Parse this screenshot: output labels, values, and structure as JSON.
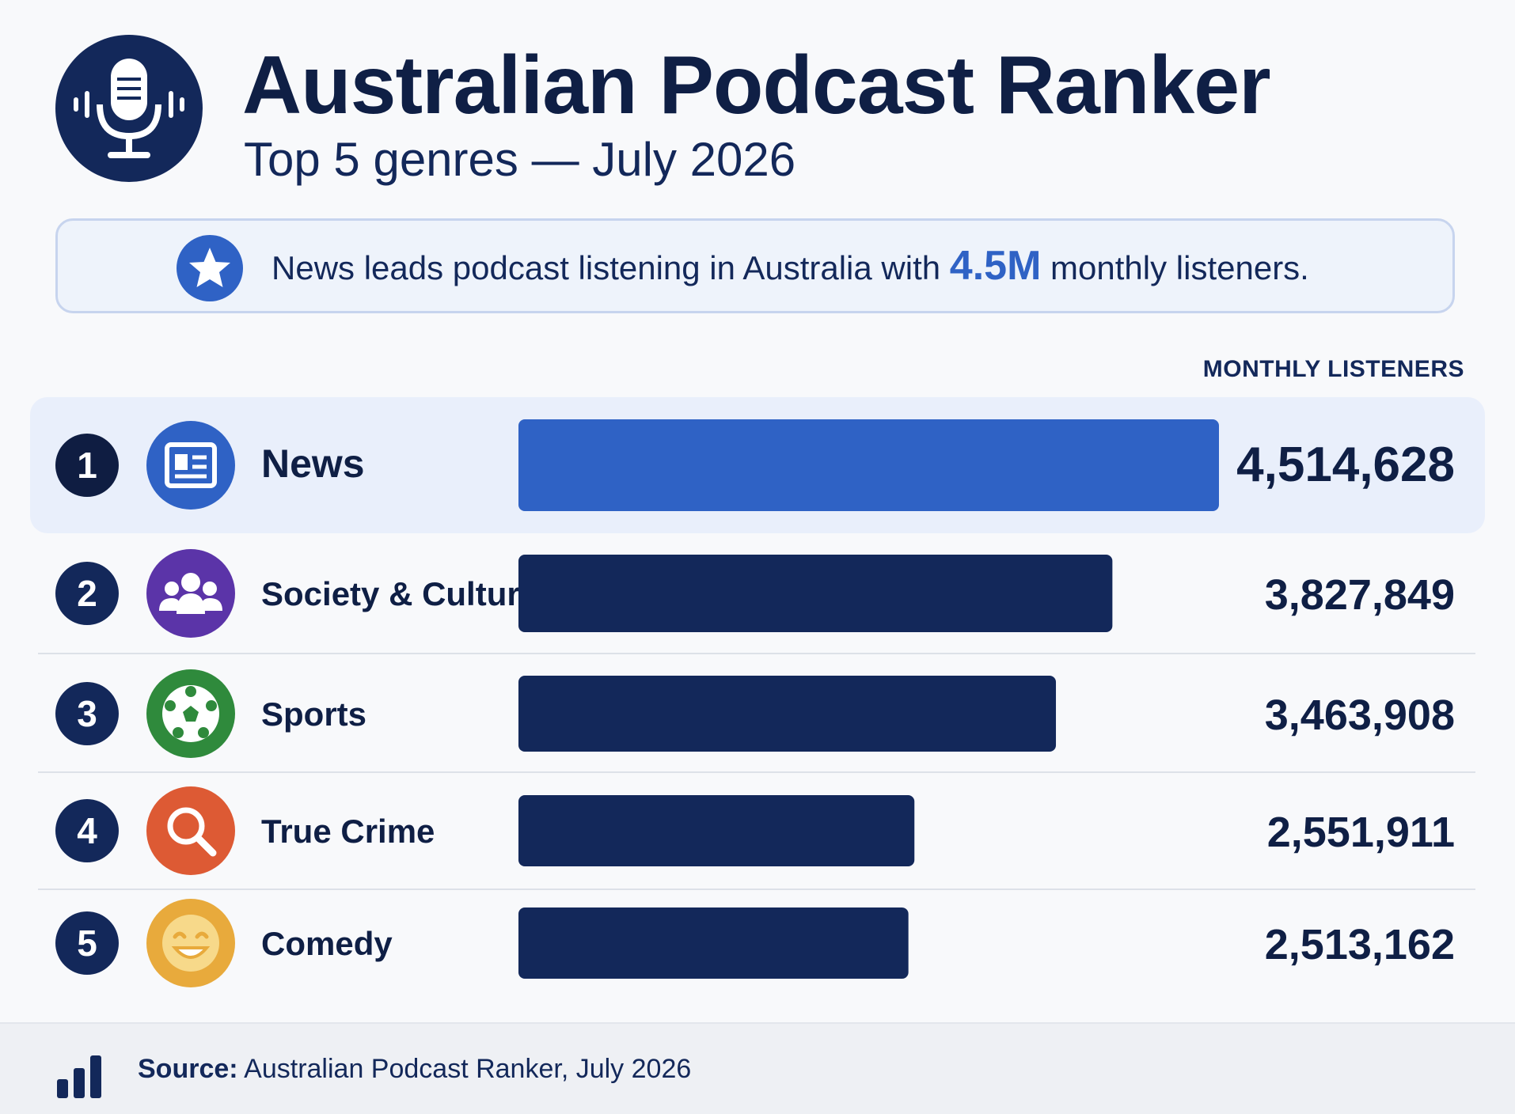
{
  "header": {
    "title": "Australian Podcast Ranker",
    "subtitle": "Top 5 genres — July 2026",
    "logo_icon": "microphone-soundwave-icon"
  },
  "banner": {
    "icon": "star-icon",
    "text_before": "News leads podcast listening in Australia with ",
    "highlight": "4.5M",
    "text_after": " monthly listeners."
  },
  "column_header": "MONTHLY LISTENERS",
  "colors": {
    "highlight_bar": "#2f62c5",
    "bar": "#13285a",
    "highlight_row_bg": "#e9effb",
    "highlight_text": "#2f62c5"
  },
  "chart_data": {
    "type": "bar",
    "orientation": "horizontal",
    "title": "Australian Podcast Ranker",
    "subtitle": "Top 5 genres — July 2026",
    "value_label": "MONTHLY LISTENERS",
    "categories": [
      "News",
      "Society & Culture",
      "Sports",
      "True Crime",
      "Comedy"
    ],
    "ranks": [
      "1",
      "2",
      "3",
      "4",
      "5"
    ],
    "values": [
      4514628,
      3827849,
      3463908,
      2551911,
      2513162
    ],
    "value_labels": [
      "4,514,628",
      "3,827,849",
      "3,463,908",
      "2,551,911",
      "2,513,162"
    ],
    "icons": [
      "newspaper-icon",
      "people-group-icon",
      "soccer-ball-icon",
      "magnifying-glass-icon",
      "smiley-face-icon"
    ],
    "icon_colors": [
      "#2f62c5",
      "#5b34a8",
      "#2f8a3c",
      "#dd5a34",
      "#e8aa3c"
    ],
    "highlighted": 0,
    "xlim": [
      0,
      4514628
    ],
    "grid": false,
    "legend": "none"
  },
  "footer": {
    "icon": "bar-chart-icon",
    "source_label": "Source:",
    "source_text": " Australian Podcast Ranker, July 2026"
  }
}
